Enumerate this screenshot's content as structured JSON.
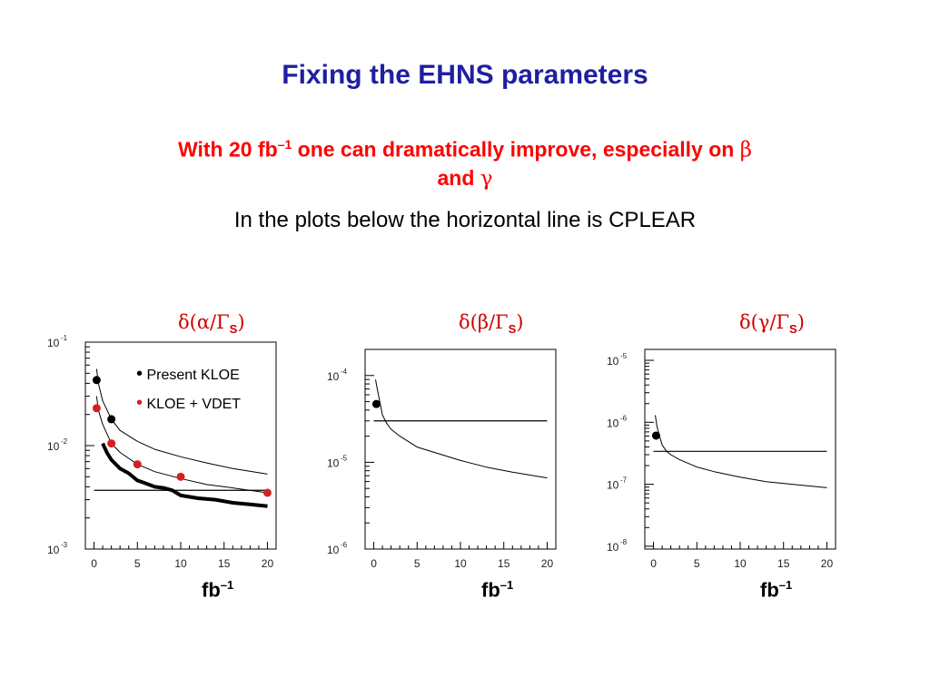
{
  "slide": {
    "title": "Fixing the EHNS parameters",
    "subtitle_line1_prefix": "With 20 fb",
    "subtitle_line1_sup": "–1",
    "subtitle_line1_suffix": " one can dramatically improve, especially on ",
    "subtitle_beta": "β",
    "subtitle_line2_prefix": "and ",
    "subtitle_gamma": "γ",
    "note": "In the plots below the horizontal line is CPLEAR"
  },
  "colors": {
    "title": "#1f1f9f",
    "subtitle": "#ff0000",
    "plot_label": "#cc0000",
    "kloe_vdet": "#d42020",
    "present_kloe": "#000000"
  },
  "legend": {
    "present_kloe": "Present KLOE",
    "kloe_vdet": "KLOE + VDET"
  },
  "chart_data": [
    {
      "type": "line",
      "label_greek": "δ(α/Γ",
      "label_sub": "S",
      "label_close": ")",
      "xunit": "fb",
      "xunit_sup": "–1",
      "x_ticks": [
        "0",
        "5",
        "10",
        "15",
        "20"
      ],
      "xlim": [
        -1,
        21
      ],
      "y_scale": "log",
      "y_ticks": [
        {
          "base": "10",
          "exp": "-1"
        },
        {
          "base": "10",
          "exp": "-2"
        },
        {
          "base": "10",
          "exp": "-3"
        }
      ],
      "ylim": [
        0.001,
        0.1
      ],
      "cplear": 0.0037,
      "series": [
        {
          "name": "Present KLOE",
          "style": "thin-curve",
          "x": [
            0.3,
            0.5,
            1,
            2,
            3,
            5,
            7,
            10,
            13,
            16,
            20
          ],
          "y": [
            0.055,
            0.04,
            0.027,
            0.018,
            0.014,
            0.011,
            0.0092,
            0.0078,
            0.0068,
            0.006,
            0.0053
          ]
        },
        {
          "name": "KLOE + VDET",
          "style": "thin-curve",
          "x": [
            0.3,
            0.5,
            1,
            2,
            3,
            5,
            7,
            10,
            13,
            16,
            20
          ],
          "y": [
            0.03,
            0.022,
            0.016,
            0.0105,
            0.0086,
            0.0066,
            0.0056,
            0.0048,
            0.0042,
            0.0039,
            0.0035
          ]
        },
        {
          "name": "",
          "style": "thick-curve",
          "x": [
            1,
            1.5,
            2,
            3,
            4,
            5,
            6,
            7,
            8,
            9,
            10,
            12,
            14,
            16,
            18,
            20
          ],
          "y": [
            0.0105,
            0.0085,
            0.0073,
            0.006,
            0.0054,
            0.0046,
            0.0043,
            0.004,
            0.0039,
            0.0037,
            0.0033,
            0.0031,
            0.003,
            0.0028,
            0.0027,
            0.0026
          ]
        },
        {
          "name": "Present KLOE points",
          "style": "black-points",
          "x": [
            0.3,
            2
          ],
          "y": [
            0.043,
            0.018
          ]
        },
        {
          "name": "KLOE + VDET points",
          "style": "red-points",
          "x": [
            0.3,
            2,
            5,
            10,
            20
          ],
          "y": [
            0.023,
            0.0105,
            0.0066,
            0.005,
            0.0035
          ]
        }
      ]
    },
    {
      "type": "line",
      "label_greek": "δ(β/Γ",
      "label_sub": "S",
      "label_close": ")",
      "xunit": "fb",
      "xunit_sup": "–1",
      "x_ticks": [
        "0",
        "5",
        "10",
        "15",
        "20"
      ],
      "xlim": [
        -1,
        21
      ],
      "y_scale": "log",
      "y_ticks": [
        {
          "base": "10",
          "exp": "-4"
        },
        {
          "base": "10",
          "exp": "-5"
        },
        {
          "base": "10",
          "exp": "-6"
        }
      ],
      "ylim": [
        1e-06,
        0.0002
      ],
      "cplear": 3e-05,
      "series": [
        {
          "name": "",
          "style": "thin-curve",
          "x": [
            0.2,
            0.4,
            0.7,
            1,
            1.5,
            2,
            3,
            5,
            7,
            10,
            13,
            16,
            20
          ],
          "y": [
            9e-05,
            7e-05,
            5e-05,
            3.5e-05,
            2.8e-05,
            2.4e-05,
            2e-05,
            1.5e-05,
            1.3e-05,
            1.05e-05,
            8.8e-06,
            7.7e-06,
            6.6e-06
          ]
        },
        {
          "name": "Present KLOE point",
          "style": "black-points",
          "x": [
            0.3
          ],
          "y": [
            4.7e-05
          ]
        }
      ]
    },
    {
      "type": "line",
      "label_greek": "δ(γ/Γ",
      "label_sub": "S",
      "label_close": ")",
      "xunit": "fb",
      "xunit_sup": "–1",
      "x_ticks": [
        "0",
        "5",
        "10",
        "15",
        "20"
      ],
      "xlim": [
        -1,
        21
      ],
      "y_scale": "log",
      "y_ticks": [
        {
          "base": "10",
          "exp": "-5"
        },
        {
          "base": "10",
          "exp": "-6"
        },
        {
          "base": "10",
          "exp": "-7"
        },
        {
          "base": "10",
          "exp": "-8"
        }
      ],
      "ylim": [
        9e-09,
        1.5e-05
      ],
      "cplear": 3.4e-07,
      "series": [
        {
          "name": "",
          "style": "thin-curve",
          "x": [
            0.2,
            0.4,
            0.7,
            1,
            1.5,
            2,
            3,
            5,
            7,
            10,
            13,
            16,
            20
          ],
          "y": [
            1.3e-06,
            8.5e-07,
            6e-07,
            4.3e-07,
            3.4e-07,
            3e-07,
            2.5e-07,
            1.9e-07,
            1.6e-07,
            1.3e-07,
            1.1e-07,
            1e-07,
            8.8e-08
          ]
        },
        {
          "name": "Present KLOE point",
          "style": "black-points",
          "x": [
            0.3
          ],
          "y": [
            6.1e-07
          ]
        }
      ]
    }
  ]
}
